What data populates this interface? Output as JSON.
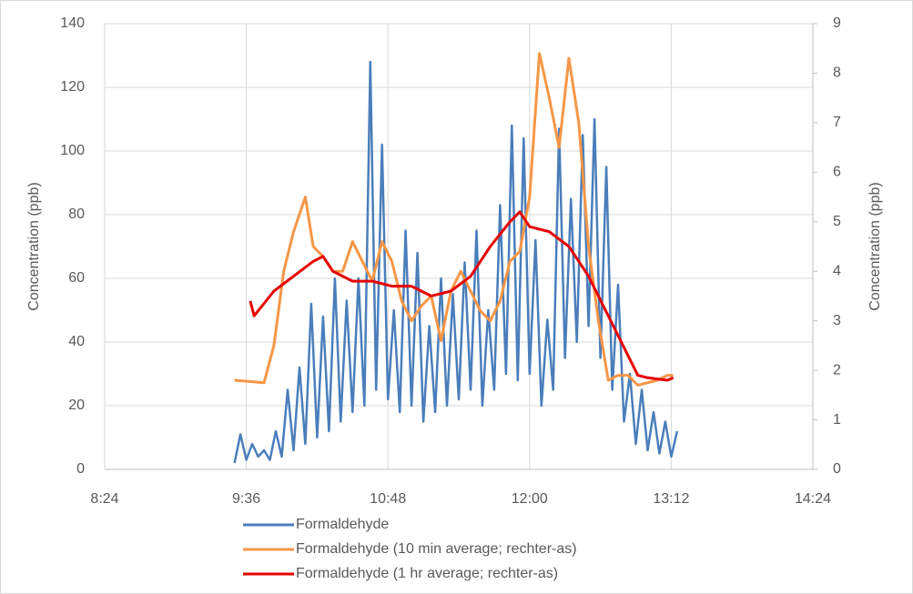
{
  "chart_data": {
    "type": "line",
    "ylabel": "Concentration (ppb)",
    "y2label": "Concentration (ppb)",
    "xlim": [
      504,
      864
    ],
    "xticks": [
      {
        "value": 504,
        "label": "8:24"
      },
      {
        "value": 576,
        "label": "9:36"
      },
      {
        "value": 648,
        "label": "10:48"
      },
      {
        "value": 720,
        "label": "12:00"
      },
      {
        "value": 792,
        "label": "13:12"
      },
      {
        "value": 864,
        "label": "14:24"
      }
    ],
    "ylim": [
      0,
      140
    ],
    "yticks": [
      0,
      20,
      40,
      60,
      80,
      100,
      120,
      140
    ],
    "y2lim": [
      0,
      9
    ],
    "y2ticks": [
      0,
      1,
      2,
      3,
      4,
      5,
      6,
      7,
      8,
      9
    ],
    "grid": true,
    "legend": "bottom",
    "series": [
      {
        "name": "Formaldehyde",
        "color": "#4a7ebb",
        "x": [
          570,
          573,
          576,
          579,
          582,
          585,
          588,
          591,
          594,
          597,
          600,
          603,
          606,
          609,
          612,
          615,
          618,
          621,
          624,
          627,
          630,
          633,
          636,
          639,
          642,
          645,
          648,
          651,
          654,
          657,
          660,
          663,
          666,
          669,
          672,
          675,
          678,
          681,
          684,
          687,
          690,
          693,
          696,
          699,
          702,
          705,
          708,
          711,
          714,
          717,
          720,
          723,
          726,
          729,
          732,
          735,
          738,
          741,
          744,
          747,
          750,
          753,
          756,
          759,
          762,
          765,
          768,
          771,
          774,
          777,
          780,
          783,
          786,
          789,
          792,
          795
        ],
        "values": [
          2,
          11,
          3,
          8,
          4,
          6,
          3,
          12,
          4,
          25,
          6,
          32,
          8,
          52,
          10,
          48,
          12,
          60,
          15,
          53,
          18,
          60,
          20,
          128,
          25,
          102,
          22,
          50,
          18,
          75,
          20,
          68,
          15,
          45,
          18,
          60,
          20,
          55,
          22,
          65,
          25,
          75,
          20,
          50,
          25,
          83,
          30,
          108,
          28,
          104,
          30,
          72,
          20,
          47,
          25,
          107,
          35,
          85,
          40,
          105,
          45,
          110,
          35,
          95,
          25,
          58,
          15,
          30,
          8,
          25,
          6,
          18,
          5,
          15,
          4,
          12
        ]
      },
      {
        "name": "Formaldehyde (10 min average; rechter-as)",
        "color": "#f79646",
        "axis": "y2",
        "x": [
          570,
          585,
          590,
          595,
          600,
          606,
          610,
          615,
          620,
          625,
          630,
          635,
          640,
          645,
          650,
          655,
          660,
          665,
          670,
          675,
          680,
          685,
          690,
          695,
          700,
          705,
          710,
          715,
          720,
          725,
          730,
          735,
          740,
          745,
          750,
          755,
          760,
          765,
          770,
          775,
          780,
          785,
          790,
          793
        ],
        "values": [
          1.8,
          1.75,
          2.5,
          4.0,
          4.8,
          5.5,
          4.5,
          4.3,
          4.0,
          4.0,
          4.6,
          4.2,
          3.8,
          4.6,
          4.2,
          3.4,
          3.0,
          3.3,
          3.5,
          2.6,
          3.6,
          4.0,
          3.6,
          3.2,
          3.0,
          3.4,
          4.2,
          4.4,
          5.5,
          8.4,
          7.5,
          6.5,
          8.3,
          7.0,
          4.5,
          3.0,
          1.8,
          1.9,
          1.9,
          1.7,
          1.75,
          1.8,
          1.9,
          1.9
        ]
      },
      {
        "name": "Formaldehyde (1 hr average; rechter-as)",
        "color": "#e60000",
        "axis": "y2",
        "x": [
          578,
          580,
          590,
          600,
          610,
          615,
          620,
          630,
          640,
          650,
          660,
          670,
          680,
          690,
          700,
          710,
          715,
          720,
          730,
          740,
          750,
          760,
          770,
          775,
          780,
          790,
          793
        ],
        "values": [
          3.4,
          3.1,
          3.6,
          3.9,
          4.2,
          4.3,
          4.0,
          3.8,
          3.8,
          3.7,
          3.7,
          3.5,
          3.6,
          3.9,
          4.5,
          5.0,
          5.2,
          4.9,
          4.8,
          4.5,
          3.9,
          3.1,
          2.3,
          1.9,
          1.85,
          1.8,
          1.85
        ]
      }
    ]
  }
}
